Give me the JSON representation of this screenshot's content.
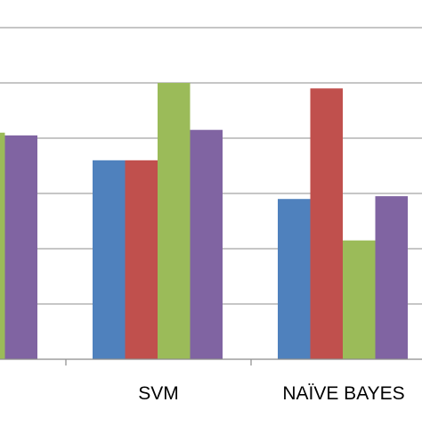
{
  "chart_data": {
    "type": "bar",
    "categories": [
      "",
      "SVM",
      "NAÏVE BAYES"
    ],
    "series": [
      {
        "values": [
          null,
          3.6,
          2.9
        ],
        "color": "#4F81BD"
      },
      {
        "values": [
          null,
          3.6,
          4.9
        ],
        "color": "#C0504D"
      },
      {
        "values": [
          4.1,
          5.0,
          2.15
        ],
        "color": "#9BBB59"
      },
      {
        "values": [
          4.05,
          4.15,
          2.95
        ],
        "color": "#8064A2"
      }
    ],
    "ylim": [
      0,
      6
    ],
    "grid": true,
    "legend": "none"
  }
}
